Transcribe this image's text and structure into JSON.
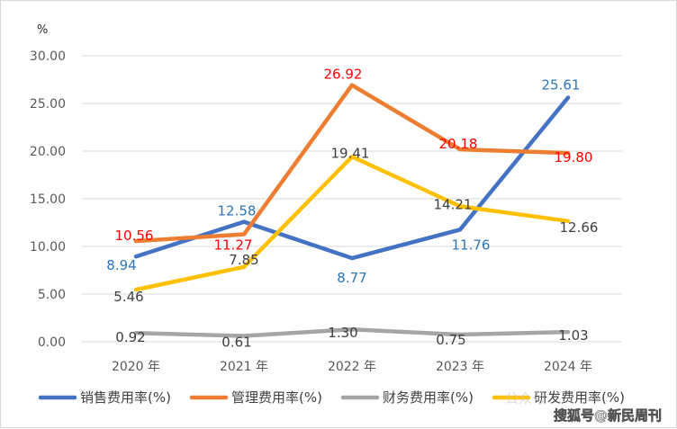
{
  "chart_data": {
    "type": "line",
    "title": "",
    "xlabel": "",
    "ylabel": "",
    "y_unit": "%",
    "categories": [
      "2020 年",
      "2021 年",
      "2022 年",
      "2023 年",
      "2024 年"
    ],
    "ylim": [
      0,
      30
    ],
    "yticks": [
      "0.00",
      "5.00",
      "10.00",
      "15.00",
      "20.00",
      "25.00",
      "30.00"
    ],
    "grid": true,
    "legend_position": "bottom",
    "series": [
      {
        "name": "销售费用率(%)",
        "color": "#4472C4",
        "label_color": "#2E75B6",
        "values": [
          8.94,
          12.58,
          8.77,
          11.76,
          25.61
        ],
        "labels": [
          "8.94",
          "12.58",
          "8.77",
          "11.76",
          "25.61"
        ]
      },
      {
        "name": "管理费用率(%)",
        "color": "#ED7D31",
        "label_color": "#FF0000",
        "values": [
          10.56,
          11.27,
          26.92,
          20.18,
          19.8
        ],
        "labels": [
          "10.56",
          "11.27",
          "26.92",
          "20.18",
          "19.80"
        ]
      },
      {
        "name": "财务费用率(%)",
        "color": "#A5A5A5",
        "label_color": "#404040",
        "values": [
          0.92,
          0.61,
          1.3,
          0.75,
          1.03
        ],
        "labels": [
          "0.92",
          "0.61",
          "1.30",
          "0.75",
          "1.03"
        ]
      },
      {
        "name": "研发费用率(%)",
        "color": "#FFC000",
        "label_color": "#404040",
        "values": [
          5.46,
          7.85,
          19.41,
          14.21,
          12.66
        ],
        "labels": [
          "5.46",
          "7.85",
          "19.41",
          "14.21",
          "12.66"
        ]
      }
    ]
  },
  "watermark": {
    "text": "搜狐号@新民周刊",
    "faint_text": "公众号"
  }
}
